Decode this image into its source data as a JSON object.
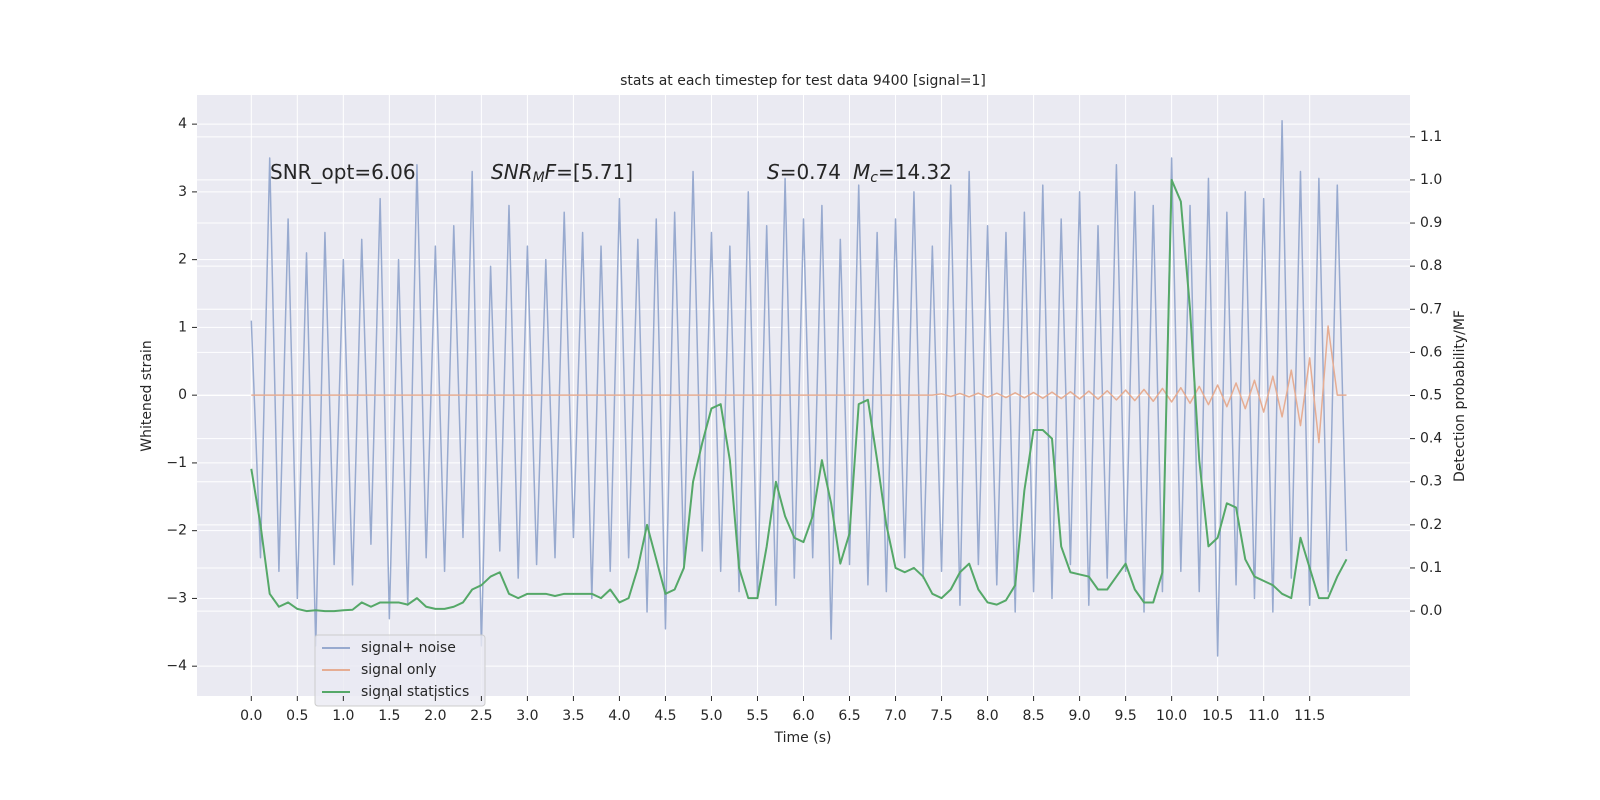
{
  "chart_data": {
    "type": "line",
    "title": "stats at each timestep for test data 9400 [signal=1]",
    "xlabel": "Time (s)",
    "ylabel": "Whitened strain",
    "y2label": "Detection probability/MF",
    "annotations": [
      [
        "SNR_opt=6.06"
      ],
      [
        "SNR",
        "M",
        "F",
        "=[5.71]"
      ],
      [
        "S",
        "=0.74",
        "M",
        "c",
        "=14.32"
      ]
    ],
    "xlim": [
      -0.59,
      12.59
    ],
    "ylim": [
      -4.44,
      4.43
    ],
    "y2lim": [
      -0.197,
      1.197
    ],
    "xticks": [
      {
        "value": 0,
        "label": "0.0"
      },
      0.5,
      {
        "value": 1,
        "label": "1.0"
      },
      1.5,
      {
        "value": 2,
        "label": "2.0"
      },
      2.5,
      {
        "value": 3,
        "label": "3.0"
      },
      3.5,
      {
        "value": 4,
        "label": "4.0"
      },
      4.5,
      {
        "value": 5,
        "label": "5.0"
      },
      5.5,
      {
        "value": 6,
        "label": "6.0"
      },
      6.5,
      {
        "value": 7,
        "label": "7.0"
      },
      7.5,
      {
        "value": 8,
        "label": "8.0"
      },
      8.5,
      {
        "value": 9,
        "label": "9.0"
      },
      9.5,
      {
        "value": 10,
        "label": "10.0"
      },
      10.5,
      {
        "value": 11,
        "label": "11.0"
      },
      11.5
    ],
    "yticks": [
      {
        "value": -4,
        "label": "−4"
      },
      {
        "value": -3,
        "label": "−3"
      },
      {
        "value": -2,
        "label": "−2"
      },
      {
        "value": -1,
        "label": "−1"
      },
      0,
      1,
      2,
      3,
      4
    ],
    "y2ticks": [
      {
        "value": 0,
        "label": "0.0"
      },
      0.1,
      0.2,
      0.3,
      0.4,
      0.5,
      0.6,
      0.7,
      0.8,
      0.9,
      {
        "value": 1,
        "label": "1.0"
      },
      1.1
    ],
    "grid": true,
    "legend": "lower left",
    "x": [
      0.0,
      0.1,
      0.2,
      0.3,
      0.4,
      0.5,
      0.6,
      0.7,
      0.8,
      0.9,
      1.0,
      1.1,
      1.2,
      1.3,
      1.4,
      1.5,
      1.6,
      1.7,
      1.8,
      1.9,
      2.0,
      2.1,
      2.2,
      2.3,
      2.4,
      2.5,
      2.6,
      2.7,
      2.8,
      2.9,
      3.0,
      3.1,
      3.2,
      3.3,
      3.4,
      3.5,
      3.6,
      3.7,
      3.8,
      3.9,
      4.0,
      4.1,
      4.2,
      4.3,
      4.4,
      4.5,
      4.6,
      4.7,
      4.8,
      4.9,
      5.0,
      5.1,
      5.2,
      5.3,
      5.4,
      5.5,
      5.6,
      5.7,
      5.8,
      5.9,
      6.0,
      6.1,
      6.2,
      6.3,
      6.4,
      6.5,
      6.6,
      6.7,
      6.8,
      6.9,
      7.0,
      7.1,
      7.2,
      7.3,
      7.4,
      7.5,
      7.6,
      7.7,
      7.8,
      7.9,
      8.0,
      8.1,
      8.2,
      8.3,
      8.4,
      8.5,
      8.6,
      8.7,
      8.8,
      8.9,
      9.0,
      9.1,
      9.2,
      9.3,
      9.4,
      9.5,
      9.6,
      9.7,
      9.8,
      9.9,
      10.0,
      10.1,
      10.2,
      10.3,
      10.4,
      10.5,
      10.6,
      10.7,
      10.8,
      10.9,
      11.0,
      11.1,
      11.2,
      11.3,
      11.4,
      11.5,
      11.6,
      11.7,
      11.8,
      11.9
    ],
    "series": [
      {
        "name": "signal+ noise",
        "color": "#98aacf",
        "values": [
          1.1,
          -2.4,
          3.5,
          -2.6,
          2.6,
          -3.0,
          2.1,
          -3.7,
          2.4,
          -2.5,
          2.0,
          -2.8,
          2.3,
          -2.2,
          2.9,
          -3.3,
          2.0,
          -3.1,
          3.4,
          -2.4,
          2.2,
          -2.6,
          2.5,
          -2.1,
          3.3,
          -3.7,
          1.9,
          -2.3,
          2.8,
          -2.7,
          2.2,
          -2.5,
          2.0,
          -2.4,
          2.7,
          -2.1,
          2.4,
          -3.0,
          2.2,
          -2.6,
          2.9,
          -2.4,
          2.3,
          -3.2,
          2.6,
          -3.45,
          2.7,
          -2.5,
          3.3,
          -2.3,
          2.4,
          -2.6,
          2.2,
          -2.9,
          3.0,
          -3.0,
          2.5,
          -3.1,
          3.2,
          -2.7,
          2.6,
          -2.4,
          2.8,
          -3.6,
          2.3,
          -2.5,
          3.1,
          -2.8,
          2.4,
          -2.9,
          2.6,
          -2.4,
          3.0,
          -2.7,
          2.2,
          -2.6,
          3.1,
          -3.1,
          3.3,
          -2.5,
          2.5,
          -2.8,
          2.4,
          -3.2,
          2.7,
          -2.9,
          3.1,
          -3.0,
          2.6,
          -2.5,
          3.0,
          -3.1,
          2.5,
          -2.7,
          3.4,
          -2.6,
          3.0,
          -3.2,
          2.8,
          -2.9,
          3.5,
          -2.6,
          2.8,
          -2.9,
          3.2,
          -3.85,
          2.7,
          -2.8,
          3.0,
          -3.0,
          2.9,
          -3.2,
          4.05,
          -2.7,
          3.3,
          -3.1,
          3.2,
          -2.9,
          3.1,
          -2.3
        ]
      },
      {
        "name": "signal only",
        "color": "#e6ad93",
        "values": [
          0,
          0,
          0,
          0,
          0,
          0,
          0,
          0,
          0,
          0,
          0,
          0,
          0,
          0,
          0,
          0,
          0,
          0,
          0,
          0,
          0,
          0,
          0,
          0,
          0,
          0,
          0,
          0,
          0,
          0,
          0,
          0,
          0,
          0,
          0,
          0,
          0,
          0,
          0,
          0,
          0,
          0,
          0,
          0,
          0,
          0,
          0,
          0,
          0,
          0,
          0,
          0,
          0,
          0,
          0,
          0,
          0,
          0,
          0,
          0,
          0,
          0,
          0,
          0,
          0,
          0,
          0,
          0,
          0,
          0,
          0,
          0,
          0,
          0,
          0,
          0.02,
          -0.02,
          0.025,
          -0.025,
          0.03,
          -0.03,
          0.03,
          -0.035,
          0.035,
          -0.04,
          0.04,
          -0.045,
          0.045,
          -0.05,
          0.05,
          -0.055,
          0.06,
          -0.06,
          0.065,
          -0.07,
          0.075,
          -0.08,
          0.085,
          -0.09,
          0.1,
          -0.1,
          0.11,
          -0.12,
          0.13,
          -0.14,
          0.15,
          -0.17,
          0.18,
          -0.2,
          0.22,
          -0.25,
          0.28,
          -0.32,
          0.37,
          -0.45,
          0.55,
          -0.7,
          1.02,
          0,
          0
        ]
      },
      {
        "name": "signal statistics",
        "color": "#55a868",
        "axis": "y2",
        "values": [
          0.33,
          0.2,
          0.04,
          0.01,
          0.02,
          0.005,
          0.0,
          0.002,
          0.0,
          0.0,
          0.002,
          0.003,
          0.02,
          0.01,
          0.02,
          0.02,
          0.02,
          0.015,
          0.03,
          0.01,
          0.005,
          0.005,
          0.01,
          0.02,
          0.05,
          0.06,
          0.08,
          0.09,
          0.04,
          0.03,
          0.04,
          0.04,
          0.04,
          0.035,
          0.04,
          0.04,
          0.04,
          0.04,
          0.03,
          0.05,
          0.02,
          0.03,
          0.1,
          0.2,
          0.12,
          0.04,
          0.05,
          0.1,
          0.3,
          0.39,
          0.47,
          0.48,
          0.35,
          0.1,
          0.03,
          0.03,
          0.15,
          0.3,
          0.22,
          0.17,
          0.16,
          0.22,
          0.35,
          0.25,
          0.11,
          0.18,
          0.48,
          0.49,
          0.35,
          0.2,
          0.1,
          0.09,
          0.1,
          0.08,
          0.04,
          0.03,
          0.05,
          0.09,
          0.11,
          0.05,
          0.02,
          0.015,
          0.025,
          0.06,
          0.28,
          0.42,
          0.42,
          0.4,
          0.15,
          0.09,
          0.085,
          0.08,
          0.05,
          0.05,
          0.08,
          0.11,
          0.05,
          0.02,
          0.02,
          0.09,
          1.0,
          0.95,
          0.7,
          0.35,
          0.15,
          0.17,
          0.25,
          0.24,
          0.12,
          0.08,
          0.07,
          0.06,
          0.04,
          0.03,
          0.17,
          0.1,
          0.03,
          0.03,
          0.08,
          0.12
        ]
      }
    ]
  }
}
